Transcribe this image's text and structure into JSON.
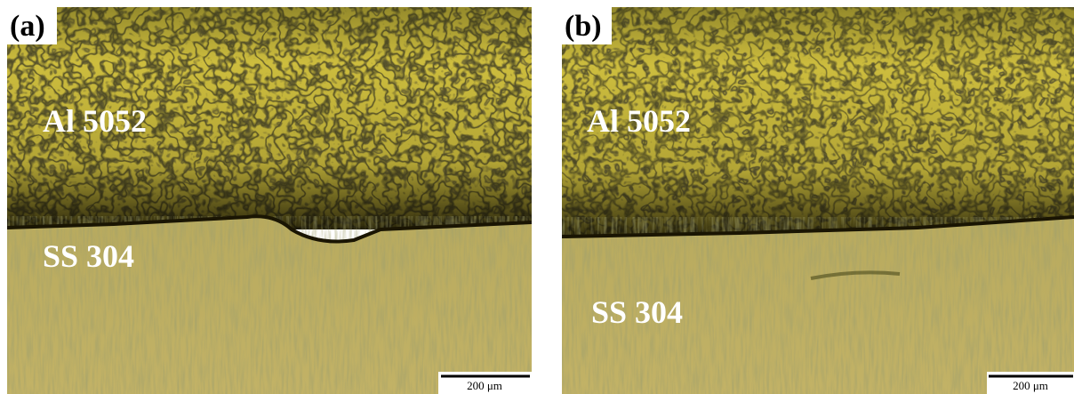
{
  "panels": [
    {
      "label": "(a)",
      "top_material": "Al 5052",
      "bottom_material": "SS 304",
      "scale_bar": "200 μm"
    },
    {
      "label": "(b)",
      "top_material": "Al 5052",
      "bottom_material": "SS 304",
      "scale_bar": "200 μm"
    }
  ]
}
